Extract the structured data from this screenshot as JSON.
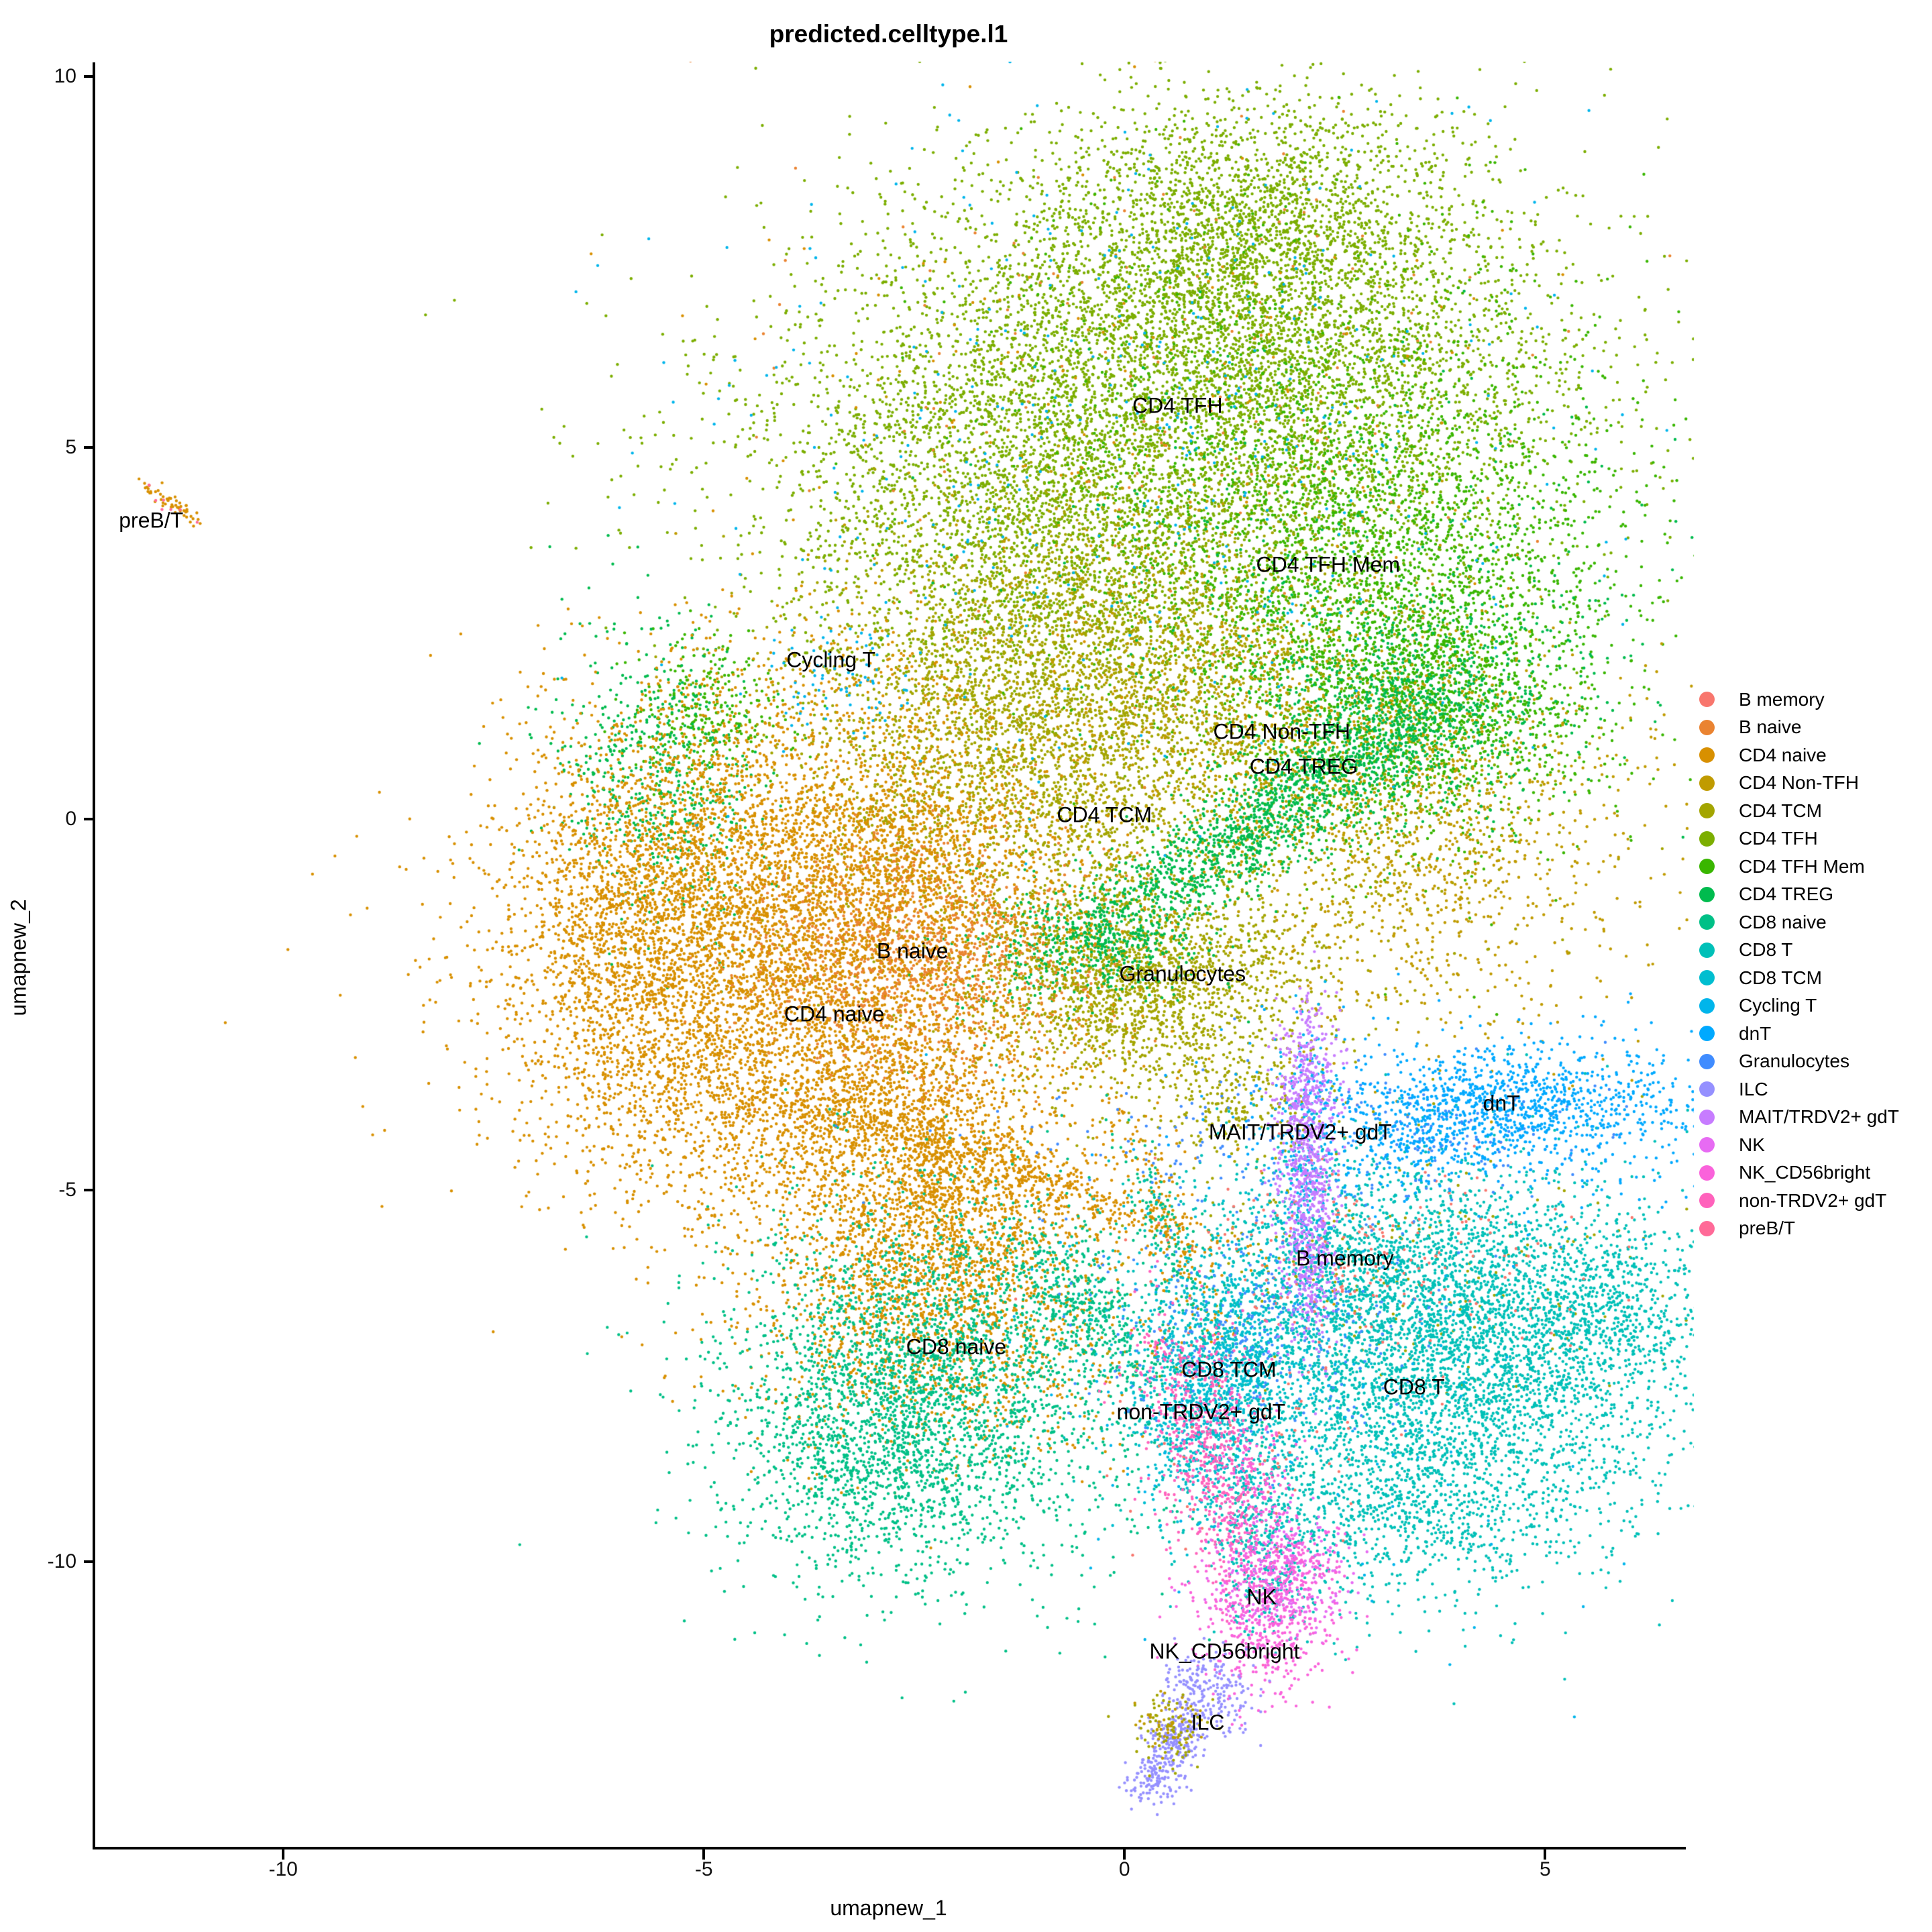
{
  "title": "predicted.celltype.l1",
  "axes": {
    "x": {
      "title": "umapnew_1",
      "ticks": [
        "-10",
        "-5",
        "0",
        "5"
      ],
      "tick_values": [
        -10,
        -5,
        0,
        5
      ]
    },
    "y": {
      "title": "umapnew_2",
      "ticks": [
        "10",
        "5",
        "0",
        "-5",
        "-10"
      ],
      "tick_values": [
        10,
        5,
        0,
        -5,
        -10
      ]
    }
  },
  "legend": {
    "position": "right",
    "items": [
      {
        "label": "B memory",
        "color": "#F8766D"
      },
      {
        "label": "B naive",
        "color": "#EA8331"
      },
      {
        "label": "CD4 naive",
        "color": "#D89000"
      },
      {
        "label": "CD4 Non-TFH",
        "color": "#C09B00"
      },
      {
        "label": "CD4 TCM",
        "color": "#A3A500"
      },
      {
        "label": "CD4 TFH",
        "color": "#7CAE00"
      },
      {
        "label": "CD4 TFH Mem",
        "color": "#39B600"
      },
      {
        "label": "CD4 TREG",
        "color": "#00BB4E"
      },
      {
        "label": "CD8 naive",
        "color": "#00C087"
      },
      {
        "label": "CD8 T",
        "color": "#00C0B8"
      },
      {
        "label": "CD8 TCM",
        "color": "#00BED0"
      },
      {
        "label": "Cycling T",
        "color": "#00B5EB"
      },
      {
        "label": "dnT",
        "color": "#00A9FF"
      },
      {
        "label": "Granulocytes",
        "color": "#408CFF"
      },
      {
        "label": "ILC",
        "color": "#9590FF"
      },
      {
        "label": "MAIT/TRDV2+ gdT",
        "color": "#C77CFF"
      },
      {
        "label": "NK",
        "color": "#E76BF3"
      },
      {
        "label": "NK_CD56bright",
        "color": "#FA62DB"
      },
      {
        "label": "non-TRDV2+ gdT",
        "color": "#FF62BC"
      },
      {
        "label": "preB/T",
        "color": "#FF6A98"
      }
    ]
  },
  "chart_data": {
    "type": "scatter",
    "title": "predicted.celltype.l1",
    "xlabel": "umapnew_1",
    "ylabel": "umapnew_2",
    "xlim": [
      -12.25,
      6.64
    ],
    "ylim": [
      -13.86,
      10.17
    ],
    "grid": false,
    "legend_position": "right",
    "point_radius_px": 2.2,
    "cluster_labels": [
      {
        "text": "preB/T",
        "x": -11.57,
        "y": 4.02
      },
      {
        "text": "CD4 TFH",
        "x": 0.63,
        "y": 5.56
      },
      {
        "text": "CD4 TFH Mem",
        "x": 2.42,
        "y": 3.42
      },
      {
        "text": "Cycling T",
        "x": -3.49,
        "y": 2.14
      },
      {
        "text": "CD4 Non-TFH",
        "x": 1.87,
        "y": 1.17
      },
      {
        "text": "CD4 TREG",
        "x": 2.13,
        "y": 0.7
      },
      {
        "text": "CD4 TCM",
        "x": -0.24,
        "y": 0.05
      },
      {
        "text": "B naive",
        "x": -2.52,
        "y": -1.78
      },
      {
        "text": "Granulocytes",
        "x": 0.69,
        "y": -2.09
      },
      {
        "text": "CD4 naive",
        "x": -3.45,
        "y": -2.63
      },
      {
        "text": "dnT",
        "x": 4.48,
        "y": -3.83
      },
      {
        "text": "MAIT/TRDV2+ gdT",
        "x": 2.09,
        "y": -4.22
      },
      {
        "text": "B memory",
        "x": 2.62,
        "y": -5.92
      },
      {
        "text": "CD8 naive",
        "x": -2.0,
        "y": -7.11
      },
      {
        "text": "CD8 TCM",
        "x": 1.24,
        "y": -7.42
      },
      {
        "text": "non-TRDV2+ gdT",
        "x": 0.91,
        "y": -7.99
      },
      {
        "text": "CD8 T",
        "x": 3.44,
        "y": -7.65
      },
      {
        "text": "NK",
        "x": 1.63,
        "y": -10.48
      },
      {
        "text": "NK_CD56bright",
        "x": 1.19,
        "y": -11.21
      },
      {
        "text": "ILC",
        "x": 0.99,
        "y": -12.17
      }
    ],
    "clusters": [
      {
        "cell": "CD4 TFH",
        "n": 2400,
        "x": 0.67,
        "y": 7.23,
        "sx": 1.75,
        "sy": 1.16,
        "rot": 0
      },
      {
        "cell": "CD4 TFH",
        "n": 3000,
        "x": -0.21,
        "y": 5.16,
        "sx": 2.23,
        "sy": 1.34,
        "rot": 0
      },
      {
        "cell": "CD4 TFH",
        "n": 2400,
        "x": 2.34,
        "y": 5.97,
        "sx": 1.59,
        "sy": 1.61,
        "rot": 0
      },
      {
        "cell": "CD4 TFH",
        "n": 1400,
        "x": -1.4,
        "y": 3.8,
        "sx": 1.44,
        "sy": 1.25,
        "rot": 0
      },
      {
        "cell": "CD4 TFH",
        "n": 800,
        "x": 1.79,
        "y": 8.32,
        "sx": 1.04,
        "sy": 0.71,
        "rot": 0
      },
      {
        "cell": "CD4 TFH Mem",
        "n": 2400,
        "x": 3.06,
        "y": 2.9,
        "sx": 1.44,
        "sy": 1.52,
        "rot": 0
      },
      {
        "cell": "CD4 TFH Mem",
        "n": 900,
        "x": 3.7,
        "y": 1.46,
        "sx": 0.88,
        "sy": 0.8,
        "rot": 0
      },
      {
        "cell": "CD4 TFH Mem",
        "n": 1100,
        "x": 2.19,
        "y": 4.7,
        "sx": 2.0,
        "sy": 1.8,
        "rot": 0
      },
      {
        "cell": "CD4 TFH Mem",
        "n": 300,
        "x": -4.91,
        "y": 1.37,
        "sx": 0.5,
        "sy": 0.5,
        "rot": 0
      },
      {
        "cell": "CD4 TCM",
        "n": 2400,
        "x": -0.45,
        "y": 2.27,
        "sx": 1.44,
        "sy": 1.07,
        "rot": 0
      },
      {
        "cell": "CD4 TCM",
        "n": 1100,
        "x": -1.56,
        "y": 0.73,
        "sx": 1.2,
        "sy": 0.89,
        "rot": 0
      },
      {
        "cell": "CD4 TCM",
        "n": 1300,
        "x": 0.19,
        "y": -0.72,
        "sx": 1.75,
        "sy": 1.25,
        "rot": 0
      },
      {
        "cell": "CD4 TCM",
        "n": 1500,
        "x": 0.19,
        "y": -2.25,
        "sx": 0.96,
        "sy": 0.63,
        "rot": 0
      },
      {
        "cell": "CD4 TCM",
        "n": 280,
        "x": 1.31,
        "y": -3.78,
        "sx": 0.64,
        "sy": 0.45,
        "rot": 0
      },
      {
        "cell": "CD4 TCM",
        "n": 200,
        "x": 3.2,
        "y": -6.14,
        "sx": 1.6,
        "sy": 0.9,
        "rot": 0
      },
      {
        "cell": "CD4 Non-TFH",
        "n": 1000,
        "x": 3.06,
        "y": 0.55,
        "sx": 1.44,
        "sy": 0.98,
        "rot": 0
      },
      {
        "cell": "CD4 Non-TFH",
        "n": 550,
        "x": 3.78,
        "y": -1.16,
        "sx": 1.2,
        "sy": 1.0,
        "rot": 0
      },
      {
        "cell": "CD4 Non-TFH",
        "n": 500,
        "x": 1.39,
        "y": 1.55,
        "sx": 1.6,
        "sy": 0.8,
        "rot": 0
      },
      {
        "cell": "CD4 Non-TFH",
        "n": 200,
        "x": 0.0,
        "y": 3.0,
        "sx": 2.0,
        "sy": 1.5,
        "rot": 0
      },
      {
        "cell": "CD4 TREG",
        "n": 1500,
        "x": 1.63,
        "y": -0.04,
        "sx": 1.68,
        "sy": 0.33,
        "rot": -33
      },
      {
        "cell": "CD4 TREG",
        "n": 700,
        "x": 3.3,
        "y": 1.46,
        "sx": 0.96,
        "sy": 0.71,
        "rot": 0
      },
      {
        "cell": "CD4 TREG",
        "n": 400,
        "x": -0.29,
        "y": -1.62,
        "sx": 0.72,
        "sy": 0.4,
        "rot": 0
      },
      {
        "cell": "CD4 TREG",
        "n": 600,
        "x": -5.55,
        "y": 0.55,
        "sx": 0.56,
        "sy": 0.98,
        "rot": -15
      },
      {
        "cell": "CD4 TREG",
        "n": 250,
        "x": 2.4,
        "y": 3.3,
        "sx": 1.8,
        "sy": 1.5,
        "rot": 0
      },
      {
        "cell": "CD4 naive",
        "n": 4200,
        "x": -3.96,
        "y": -2.07,
        "sx": 1.6,
        "sy": 1.52,
        "rot": 0
      },
      {
        "cell": "CD4 naive",
        "n": 1400,
        "x": -5.39,
        "y": -0.63,
        "sx": 0.96,
        "sy": 1.16,
        "rot": 0
      },
      {
        "cell": "CD4 naive",
        "n": 800,
        "x": -5.95,
        "y": -1.98,
        "sx": 0.64,
        "sy": 1.07,
        "rot": 0
      },
      {
        "cell": "CD4 naive",
        "n": 1400,
        "x": -2.76,
        "y": -0.54,
        "sx": 1.12,
        "sy": 0.98,
        "rot": 0
      },
      {
        "cell": "CD4 naive",
        "n": 1400,
        "x": -3.48,
        "y": -3.97,
        "sx": 1.44,
        "sy": 0.8,
        "rot": 0
      },
      {
        "cell": "CD4 naive",
        "n": 500,
        "x": -1.32,
        "y": -4.73,
        "sx": 1.44,
        "sy": 0.18,
        "rot": 20
      },
      {
        "cell": "CD4 naive",
        "n": 1200,
        "x": -2.2,
        "y": -5.5,
        "sx": 0.88,
        "sy": 0.8,
        "rot": 0
      },
      {
        "cell": "CD4 naive",
        "n": 1300,
        "x": -2.2,
        "y": -6.81,
        "sx": 1.12,
        "sy": 0.89,
        "rot": 0
      },
      {
        "cell": "CD4 naive",
        "n": 150,
        "x": -2.28,
        "y": -4.87,
        "sx": 0.2,
        "sy": 0.5,
        "rot": 0
      },
      {
        "cell": "CD4 naive",
        "n": 180,
        "x": 0.55,
        "y": -5.5,
        "sx": 0.88,
        "sy": 0.18,
        "rot": 65
      },
      {
        "cell": "CD4 naive",
        "n": 240,
        "x": -3.56,
        "y": 1.73,
        "sx": 1.0,
        "sy": 0.7,
        "rot": 0
      },
      {
        "cell": "CD4 naive",
        "n": 180,
        "x": 0.3,
        "y": 5.0,
        "sx": 2.3,
        "sy": 2.0,
        "rot": 0
      },
      {
        "cell": "CD4 naive",
        "n": 55,
        "x": -11.31,
        "y": 4.24,
        "sx": 0.22,
        "sy": 0.05,
        "rot": 35
      },
      {
        "cell": "B naive",
        "n": 1000,
        "x": -2.48,
        "y": -1.84,
        "sx": 1.04,
        "sy": 0.8,
        "rot": 0
      },
      {
        "cell": "B naive",
        "n": 150,
        "x": 0.5,
        "y": 5.5,
        "sx": 2.2,
        "sy": 1.9,
        "rot": 0
      },
      {
        "cell": "CD8 naive",
        "n": 2600,
        "x": -2.2,
        "y": -7.58,
        "sx": 1.28,
        "sy": 1.25,
        "rot": 0
      },
      {
        "cell": "CD8 naive",
        "n": 850,
        "x": -3.0,
        "y": -8.48,
        "sx": 0.8,
        "sy": 0.8,
        "rot": 0
      },
      {
        "cell": "CD8 naive",
        "n": 320,
        "x": -0.45,
        "y": -6.59,
        "sx": 0.72,
        "sy": 0.27,
        "rot": 45
      },
      {
        "cell": "CD8 naive",
        "n": 140,
        "x": 0.55,
        "y": -5.69,
        "sx": 0.8,
        "sy": 0.16,
        "rot": 65
      },
      {
        "cell": "CD8 T",
        "n": 3500,
        "x": 3.54,
        "y": -7.58,
        "sx": 1.6,
        "sy": 1.25,
        "rot": 0
      },
      {
        "cell": "CD8 T",
        "n": 1000,
        "x": 4.74,
        "y": -6.77,
        "sx": 0.96,
        "sy": 0.89,
        "rot": 0
      },
      {
        "cell": "CD8 T",
        "n": 1100,
        "x": 2.9,
        "y": -5.95,
        "sx": 1.2,
        "sy": 0.8,
        "rot": 0
      },
      {
        "cell": "CD8 T",
        "n": 260,
        "x": 6.01,
        "y": -6.59,
        "sx": 0.48,
        "sy": 0.54,
        "rot": 0
      },
      {
        "cell": "CD8 T",
        "n": 450,
        "x": 3.3,
        "y": -9.39,
        "sx": 0.96,
        "sy": 0.54,
        "rot": 0
      },
      {
        "cell": "CD8 T",
        "n": 240,
        "x": 1.61,
        "y": -9.39,
        "sx": 0.3,
        "sy": 0.71,
        "rot": 0
      },
      {
        "cell": "CD8 T",
        "n": 150,
        "x": 1.71,
        "y": -10.19,
        "sx": 0.3,
        "sy": 0.5,
        "rot": 0
      },
      {
        "cell": "CD8 TCM",
        "n": 600,
        "x": 1.16,
        "y": -7.35,
        "sx": 0.52,
        "sy": 0.54,
        "rot": 0
      },
      {
        "cell": "CD8 TCM",
        "n": 420,
        "x": 1.03,
        "y": -8.21,
        "sx": 0.44,
        "sy": 0.63,
        "rot": 0
      },
      {
        "cell": "CD8 TCM",
        "n": 230,
        "x": 1.47,
        "y": -6.4,
        "sx": 0.6,
        "sy": 0.6,
        "rot": 0
      },
      {
        "cell": "B memory",
        "n": 200,
        "x": 2.74,
        "y": -5.87,
        "sx": 1.2,
        "sy": 0.71,
        "rot": 0
      },
      {
        "cell": "B memory",
        "n": 70,
        "x": 1.39,
        "y": -8.4,
        "sx": 0.8,
        "sy": 0.9,
        "rot": 0
      },
      {
        "cell": "Granulocytes",
        "n": 320,
        "x": 1.63,
        "y": -6.9,
        "sx": 0.96,
        "sy": 0.71,
        "rot": 0
      },
      {
        "cell": "Granulocytes",
        "n": 170,
        "x": 2.03,
        "y": -4.33,
        "sx": 1.6,
        "sy": 0.54,
        "rot": 0
      },
      {
        "cell": "Granulocytes",
        "n": 90,
        "x": 4.2,
        "y": -4.12,
        "sx": 0.8,
        "sy": 0.36,
        "rot": 0
      },
      {
        "cell": "dnT",
        "n": 850,
        "x": 4.5,
        "y": -3.85,
        "sx": 1.04,
        "sy": 0.36,
        "rot": 0
      },
      {
        "cell": "dnT",
        "n": 420,
        "x": 4.5,
        "y": -3.97,
        "sx": 1.68,
        "sy": 0.71,
        "rot": 0
      },
      {
        "cell": "dnT",
        "n": 140,
        "x": 3.26,
        "y": -4.37,
        "sx": 0.48,
        "sy": 0.27,
        "rot": 0
      },
      {
        "cell": "Cycling T",
        "n": 420,
        "x": 0.19,
        "y": 5.16,
        "sx": 2.6,
        "sy": 2.2,
        "rot": 0
      },
      {
        "cell": "Cycling T",
        "n": 70,
        "x": -3.49,
        "y": 1.9,
        "sx": 0.5,
        "sy": 0.4,
        "rot": 0
      },
      {
        "cell": "Cycling T",
        "n": 260,
        "x": 2.17,
        "y": -4.6,
        "sx": 0.18,
        "sy": 0.89,
        "rot": 0
      },
      {
        "cell": "Cycling T",
        "n": 130,
        "x": 1.6,
        "y": -7.96,
        "sx": 1.6,
        "sy": 1.3,
        "rot": 0
      },
      {
        "cell": "MAIT/TRDV2+ gdT",
        "n": 450,
        "x": 2.17,
        "y": -4.37,
        "sx": 0.18,
        "sy": 0.8,
        "rot": 0
      },
      {
        "cell": "MAIT/TRDV2+ gdT",
        "n": 220,
        "x": 2.2,
        "y": -5.69,
        "sx": 0.14,
        "sy": 0.54,
        "rot": 0
      },
      {
        "cell": "MAIT/TRDV2+ gdT",
        "n": 170,
        "x": 2.15,
        "y": -3.42,
        "sx": 0.2,
        "sy": 0.45,
        "rot": 0
      },
      {
        "cell": "MAIT/TRDV2+ gdT",
        "n": 90,
        "x": 2.15,
        "y": -6.44,
        "sx": 0.2,
        "sy": 0.55,
        "rot": 0
      },
      {
        "cell": "non-TRDV2+ gdT",
        "n": 400,
        "x": 0.91,
        "y": -8.16,
        "sx": 0.3,
        "sy": 0.71,
        "rot": 0
      },
      {
        "cell": "non-TRDV2+ gdT",
        "n": 180,
        "x": 1.32,
        "y": -9.43,
        "sx": 0.26,
        "sy": 0.49,
        "rot": 0
      },
      {
        "cell": "non-TRDV2+ gdT",
        "n": 60,
        "x": 0.43,
        "y": -7.15,
        "sx": 0.3,
        "sy": 0.4,
        "rot": 0
      },
      {
        "cell": "NK_CD56bright",
        "n": 110,
        "x": 1.56,
        "y": -8.94,
        "sx": 0.24,
        "sy": 0.53,
        "rot": 0
      },
      {
        "cell": "NK",
        "n": 260,
        "x": 1.83,
        "y": -10.22,
        "sx": 0.38,
        "sy": 0.4,
        "rot": 0
      },
      {
        "cell": "NK_CD56bright",
        "n": 500,
        "x": 1.67,
        "y": -10.72,
        "sx": 0.42,
        "sy": 0.58,
        "rot": 0
      },
      {
        "cell": "NK_CD56bright",
        "n": 110,
        "x": 2.04,
        "y": -10.02,
        "sx": 0.26,
        "sy": 0.22,
        "rot": 0
      },
      {
        "cell": "ILC",
        "n": 190,
        "x": 1.0,
        "y": -11.74,
        "sx": 0.24,
        "sy": 0.36,
        "rot": -55
      },
      {
        "cell": "ILC",
        "n": 230,
        "x": 0.65,
        "y": -12.38,
        "sx": 0.3,
        "sy": 0.18,
        "rot": -55
      },
      {
        "cell": "ILC",
        "n": 100,
        "x": 0.37,
        "y": -12.93,
        "sx": 0.16,
        "sy": 0.18,
        "rot": 0
      },
      {
        "cell": "CD4 TCM",
        "n": 85,
        "x": 0.56,
        "y": -12.26,
        "sx": 0.24,
        "sy": 0.27,
        "rot": -55
      },
      {
        "cell": "CD4 Non-TFH",
        "n": 45,
        "x": 0.52,
        "y": -12.21,
        "sx": 0.2,
        "sy": 0.2,
        "rot": 0
      },
      {
        "cell": "preB/T",
        "n": 8,
        "x": -11.31,
        "y": 4.24,
        "sx": 0.18,
        "sy": 0.05,
        "rot": 35
      }
    ]
  }
}
